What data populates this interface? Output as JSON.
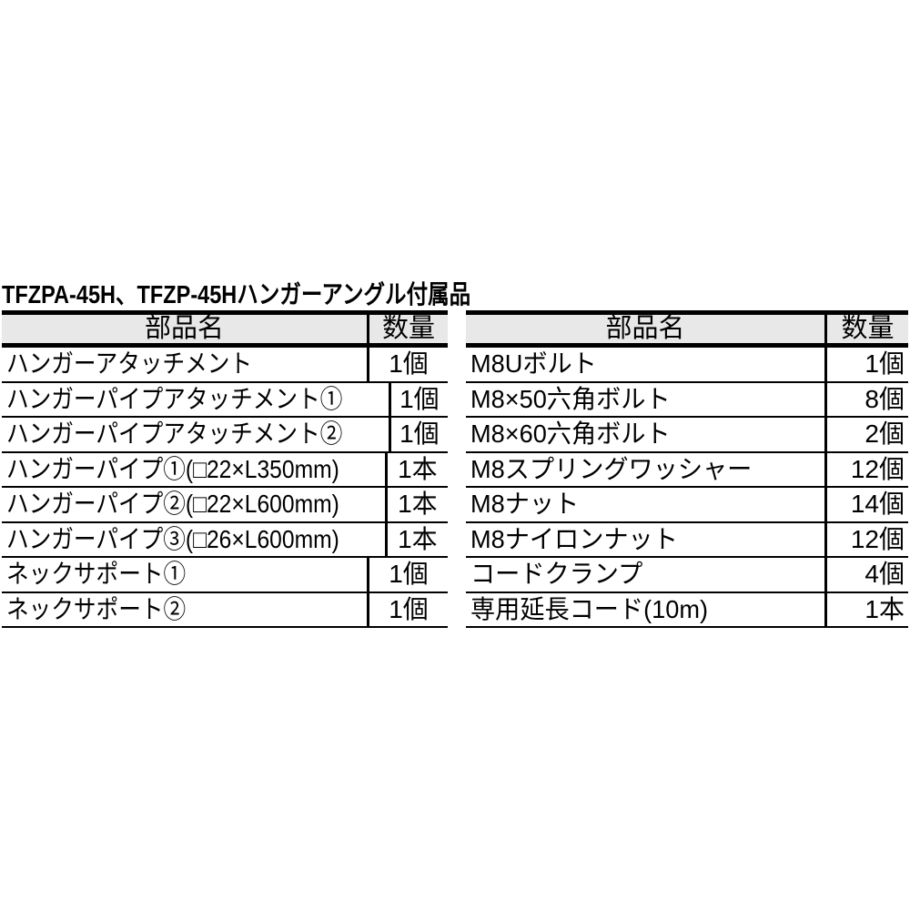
{
  "colors": {
    "background": "#ffffff",
    "text": "#000000",
    "border": "#000000",
    "header_bg": "#e8e8e8"
  },
  "title": "TFZPA-45H、TFZP-45Hハンガーアングル付属品",
  "tables": [
    {
      "position": "left",
      "headers": {
        "name": "部品名",
        "qty": "数量"
      },
      "rows": [
        {
          "name": "ハンガーアタッチメント",
          "qty": "1個"
        },
        {
          "name": "ハンガーパイプアタッチメント①",
          "qty": "1個"
        },
        {
          "name": "ハンガーパイプアタッチメント②",
          "qty": "1個"
        },
        {
          "name": "ハンガーパイプ①(□22×L350mm)",
          "qty": "1本"
        },
        {
          "name": "ハンガーパイプ②(□22×L600mm)",
          "qty": "1本"
        },
        {
          "name": "ハンガーパイプ③(□26×L600mm)",
          "qty": "1本"
        },
        {
          "name": "ネックサポート①",
          "qty": "1個"
        },
        {
          "name": "ネックサポート②",
          "qty": "1個"
        }
      ]
    },
    {
      "position": "right",
      "headers": {
        "name": "部品名",
        "qty": "数量"
      },
      "rows": [
        {
          "name": "M8Uボルト",
          "qty": "1個"
        },
        {
          "name": "M8×50六角ボルト",
          "qty": "8個"
        },
        {
          "name": "M8×60六角ボルト",
          "qty": "2個"
        },
        {
          "name": "M8スプリングワッシャー",
          "qty": "12個"
        },
        {
          "name": "M8ナット",
          "qty": "14個"
        },
        {
          "name": "M8ナイロンナット",
          "qty": "12個"
        },
        {
          "name": "コードクランプ",
          "qty": "4個"
        },
        {
          "name": "専用延長コード(10m)",
          "qty": "1本"
        }
      ]
    }
  ]
}
